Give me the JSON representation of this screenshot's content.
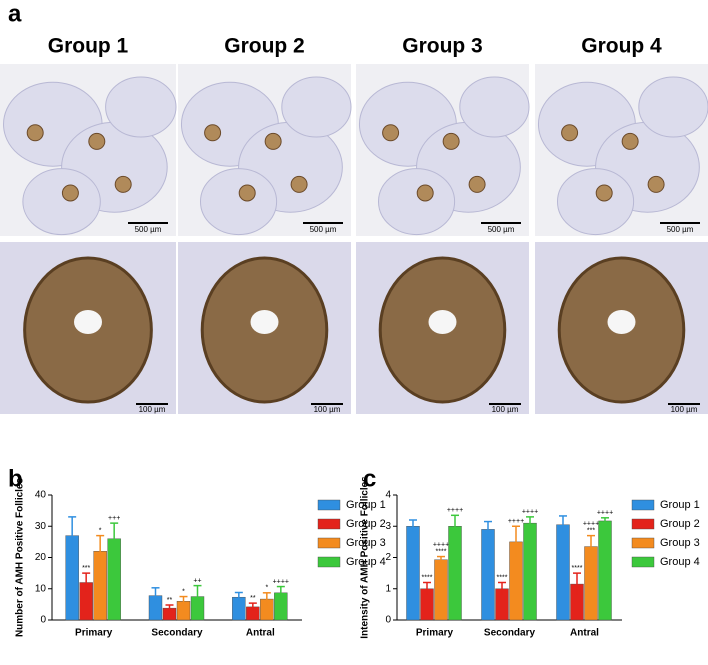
{
  "panel_a": {
    "label": "a",
    "groups": [
      "Group 1",
      "Group 2",
      "Group 3",
      "Group 4"
    ],
    "scale_top": [
      "500 µm",
      "500 µm",
      "500 µm",
      "500 µm"
    ],
    "scale_bottom": [
      "100 µm",
      "100 µm",
      "100 µm",
      "100 µm"
    ]
  },
  "chart_data": [
    {
      "type": "bar",
      "panel_label": "b",
      "y_label": "Number of AMH Positive Follicles",
      "categories": [
        "Primary",
        "Secondary",
        "Antral"
      ],
      "ylim": [
        0,
        40
      ],
      "yticks": [
        0,
        10,
        20,
        30,
        40
      ],
      "series": [
        {
          "name": "Group 1",
          "color": "#2f8fe0",
          "values": [
            27,
            7.8,
            7.3
          ],
          "errors": [
            6,
            2.5,
            1.5
          ]
        },
        {
          "name": "Group 2",
          "color": "#e3231b",
          "values": [
            12,
            3.8,
            4.2
          ],
          "errors": [
            3,
            1,
            1.2
          ],
          "sig_labels": [
            [
              "***"
            ],
            [
              "**"
            ],
            [
              "**"
            ]
          ]
        },
        {
          "name": "Group 3",
          "color": "#f38b1f",
          "values": [
            22,
            6,
            6.7
          ],
          "errors": [
            5,
            1.5,
            2
          ],
          "sig_labels": [
            [
              "*"
            ],
            [
              "*"
            ],
            [
              "*"
            ]
          ]
        },
        {
          "name": "Group 4",
          "color": "#3cc83c",
          "values": [
            26,
            7.5,
            8.7
          ],
          "errors": [
            5,
            3.5,
            2
          ],
          "sig_labels": [
            [
              "+++"
            ],
            [
              "++"
            ],
            [
              "++++"
            ]
          ]
        }
      ]
    },
    {
      "type": "bar",
      "panel_label": "c",
      "y_label": "Intensity of AMH Positive Follicles",
      "categories": [
        "Primary",
        "Secondary",
        "Antral"
      ],
      "ylim": [
        0,
        4
      ],
      "yticks": [
        0,
        1,
        2,
        3,
        4
      ],
      "series": [
        {
          "name": "Group 1",
          "color": "#2f8fe0",
          "values": [
            3.0,
            2.9,
            3.05
          ],
          "errors": [
            0.2,
            0.25,
            0.28
          ]
        },
        {
          "name": "Group 2",
          "color": "#e3231b",
          "values": [
            1.0,
            1.0,
            1.15
          ],
          "errors": [
            0.2,
            0.2,
            0.35
          ],
          "sig_labels": [
            [
              "****"
            ],
            [
              "****"
            ],
            [
              "****"
            ]
          ]
        },
        {
          "name": "Group 3",
          "color": "#f38b1f",
          "values": [
            1.93,
            2.5,
            2.35
          ],
          "errors": [
            0.1,
            0.5,
            0.35
          ],
          "sig_labels": [
            [
              "++++",
              "****"
            ],
            [
              "++++"
            ],
            [
              "++++",
              "***"
            ]
          ]
        },
        {
          "name": "Group 4",
          "color": "#3cc83c",
          "values": [
            3.0,
            3.1,
            3.17
          ],
          "errors": [
            0.35,
            0.2,
            0.1
          ],
          "sig_labels": [
            [
              "++++"
            ],
            [
              "++++"
            ],
            [
              "++++"
            ]
          ]
        }
      ]
    }
  ]
}
